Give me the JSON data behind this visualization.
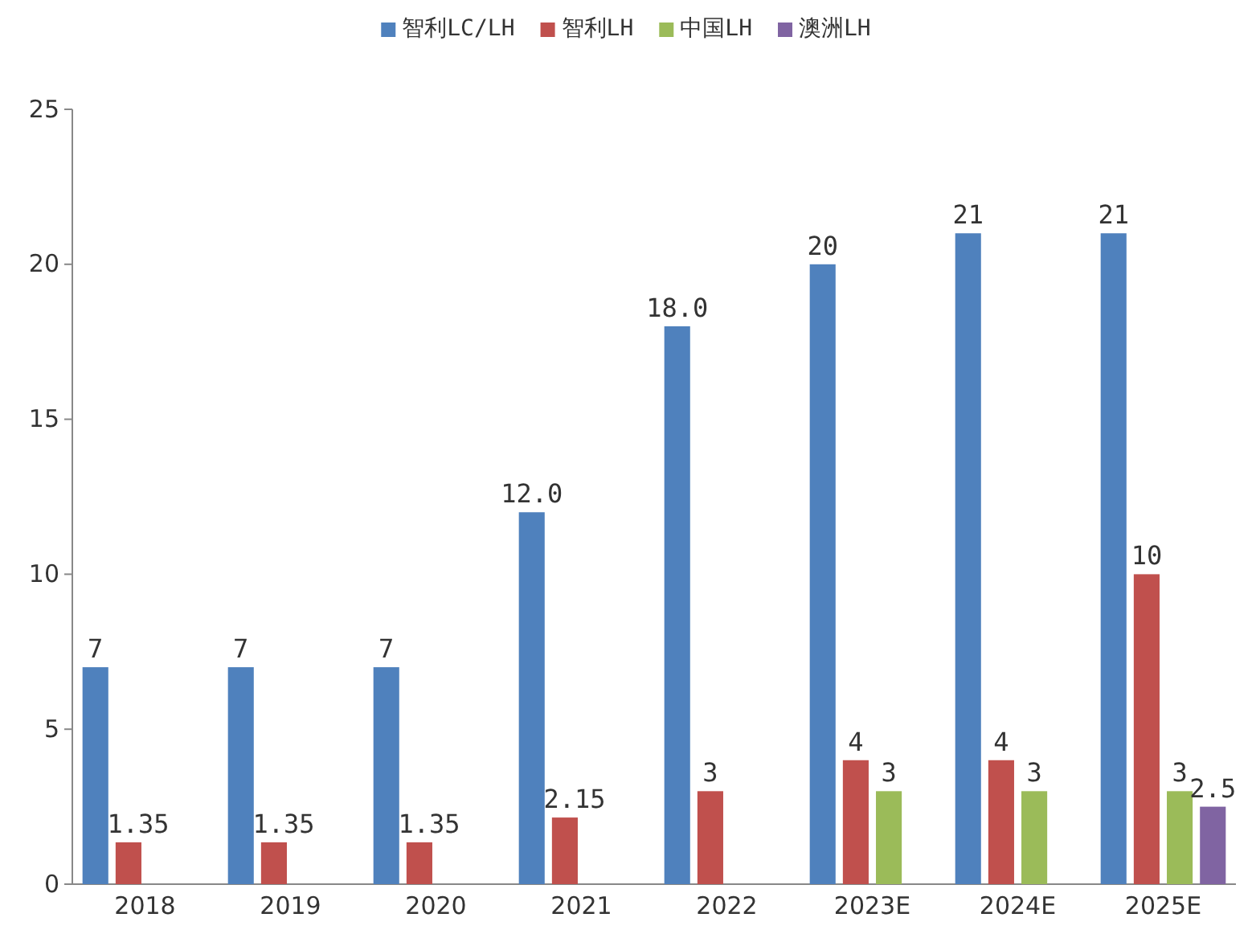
{
  "chart_data": {
    "type": "bar",
    "categories": [
      "2018",
      "2019",
      "2020",
      "2021",
      "2022",
      "2023E",
      "2024E",
      "2025E"
    ],
    "series": [
      {
        "name": "智利LC/LH",
        "color": "#4f81bd",
        "values": [
          7,
          7,
          7,
          12,
          18,
          20,
          21,
          21
        ],
        "value_labels": [
          "7",
          "7",
          "7",
          "12.0",
          "18.0",
          "20",
          "21",
          "21"
        ]
      },
      {
        "name": "智利LH",
        "color": "#c0504d",
        "values": [
          1.35,
          1.35,
          1.35,
          2.15,
          3,
          4,
          4,
          10
        ],
        "value_labels": [
          "1.35",
          "1.35",
          "1.35",
          "2.15",
          "3",
          "4",
          "4",
          "10"
        ]
      },
      {
        "name": "中国LH",
        "color": "#9bbb59",
        "values": [
          null,
          null,
          null,
          null,
          null,
          3,
          3,
          3
        ],
        "value_labels": [
          null,
          null,
          null,
          null,
          null,
          "3",
          "3",
          "3"
        ]
      },
      {
        "name": "澳洲LH",
        "color": "#8064a2",
        "values": [
          null,
          null,
          null,
          null,
          null,
          null,
          null,
          2.5
        ],
        "value_labels": [
          null,
          null,
          null,
          null,
          null,
          null,
          null,
          "2.5"
        ]
      }
    ],
    "ylim": [
      0,
      25
    ],
    "yticks": [
      0,
      5,
      10,
      15,
      20,
      25
    ],
    "grid": false,
    "legend": "top"
  }
}
